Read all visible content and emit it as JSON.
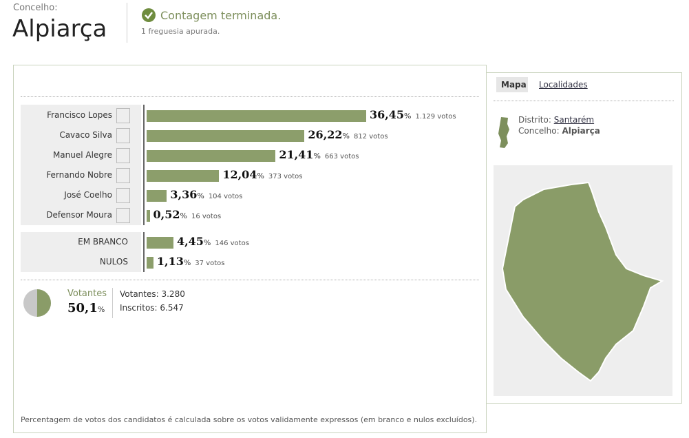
{
  "header": {
    "label": "Concelho:",
    "name": "Alpiarça",
    "status": "Contagem terminada.",
    "note": "1 freguesia apurada."
  },
  "results": {
    "percent_sign": "%",
    "candidates": [
      {
        "name": "Francisco Lopes",
        "percent": {
          "value": 36.45,
          "label": "36,45"
        },
        "votes": "1.129 votos"
      },
      {
        "name": "Cavaco Silva",
        "percent": {
          "value": 26.22,
          "label": "26,22"
        },
        "votes": "812 votos"
      },
      {
        "name": "Manuel Alegre",
        "percent": {
          "value": 21.41,
          "label": "21,41"
        },
        "votes": "663 votos"
      },
      {
        "name": "Fernando Nobre",
        "percent": {
          "value": 12.04,
          "label": "12,04"
        },
        "votes": "373 votos"
      },
      {
        "name": "José Coelho",
        "percent": {
          "value": 3.36,
          "label": "3,36"
        },
        "votes": "104 votos"
      },
      {
        "name": "Defensor Moura",
        "percent": {
          "value": 0.52,
          "label": "0,52"
        },
        "votes": "16 votos"
      }
    ],
    "others": [
      {
        "name": "EM BRANCO",
        "percent": {
          "value": 4.45,
          "label": "4,45"
        },
        "votes": "146 votos"
      },
      {
        "name": "NULOS",
        "percent": {
          "value": 1.13,
          "label": "1,13"
        },
        "votes": "37 votos"
      }
    ]
  },
  "turnout": {
    "label": "Votantes",
    "percent": {
      "value": 50.1,
      "label": "50,1"
    },
    "votantes": "Votantes: 3.280",
    "inscritos": "Inscritos: 6.547"
  },
  "footnote": "Percentagem de votos dos candidatos é calculada sobre os votos validamente expressos (em branco e nulos excluídos).",
  "side": {
    "tabs": [
      "Mapa",
      "Localidades"
    ],
    "distrito_label": "Distrito:",
    "distrito": "Santarém",
    "concelho_label": "Concelho:",
    "concelho": "Alpiarça"
  }
}
